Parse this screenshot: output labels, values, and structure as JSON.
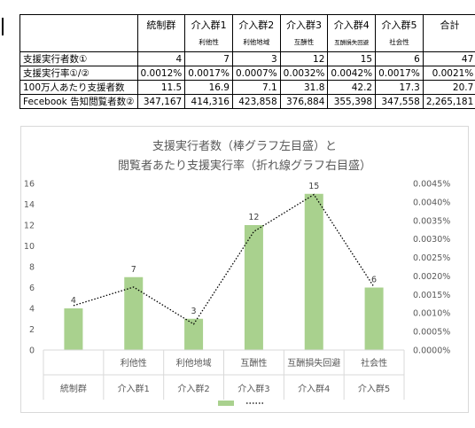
{
  "table": {
    "headers": [
      {
        "main": "統制群",
        "sub": ""
      },
      {
        "main": "介入群1",
        "sub": "利他性"
      },
      {
        "main": "介入群2",
        "sub": "利他地域"
      },
      {
        "main": "介入群3",
        "sub": "互酬性"
      },
      {
        "main": "介入群4",
        "sub": "互酬損失回避"
      },
      {
        "main": "介入群5",
        "sub": "社会性"
      },
      {
        "main": "合計",
        "sub": ""
      }
    ],
    "rows": [
      {
        "label": "支援実行者数①",
        "values": [
          "4",
          "7",
          "3",
          "12",
          "15",
          "6",
          "47"
        ]
      },
      {
        "label": "支援実行率①/②",
        "values": [
          "0.0012%",
          "0.0017%",
          "0.0007%",
          "0.0032%",
          "0.0042%",
          "0.0017%",
          "0.0021%"
        ]
      },
      {
        "label": "100万人あたり支援者数",
        "values": [
          "11.5",
          "16.9",
          "7.1",
          "31.8",
          "42.2",
          "17.3",
          "20.7"
        ]
      },
      {
        "label": "Fecebook 告知閲覧者数②",
        "values": [
          "347,167",
          "414,316",
          "423,858",
          "376,884",
          "355,398",
          "347,558",
          "2,265,181"
        ]
      }
    ]
  },
  "chart_data": {
    "type": "bar",
    "title_lines": [
      "支援実行者数（棒グラフ左目盛）と",
      "閲覧者あたり支援実行率（折れ線グラフ右目盛）"
    ],
    "categories": [
      {
        "top": "",
        "bottom": "統制群"
      },
      {
        "top": "利他性",
        "bottom": "介入群1"
      },
      {
        "top": "利他地域",
        "bottom": "介入群2"
      },
      {
        "top": "互酬性",
        "bottom": "介入群3"
      },
      {
        "top": "互酬損失回避",
        "bottom": "介入群4"
      },
      {
        "top": "社会性",
        "bottom": "介入群5"
      }
    ],
    "series": [
      {
        "type": "bar",
        "axis": "left",
        "values": [
          4,
          7,
          3,
          12,
          15,
          6
        ],
        "color": "#a9d18e"
      },
      {
        "type": "line",
        "axis": "right",
        "style": "dotted",
        "values": [
          0.0012,
          0.0017,
          0.0007,
          0.0032,
          0.0042,
          0.0017
        ],
        "color": "#000000"
      }
    ],
    "left_axis": {
      "min": 0,
      "max": 16,
      "ticks": [
        "0",
        "2",
        "4",
        "6",
        "8",
        "10",
        "12",
        "14",
        "16"
      ]
    },
    "right_axis": {
      "min": 0,
      "max": 0.0045,
      "ticks": [
        "0.0000%",
        "0.0005%",
        "0.0010%",
        "0.0015%",
        "0.0020%",
        "0.0025%",
        "0.0030%",
        "0.0035%",
        "0.0040%",
        "0.0045%"
      ]
    },
    "data_labels": [
      "4",
      "7",
      "3",
      "12",
      "15",
      "6"
    ],
    "grid": false,
    "legend_placement": "bottom"
  }
}
